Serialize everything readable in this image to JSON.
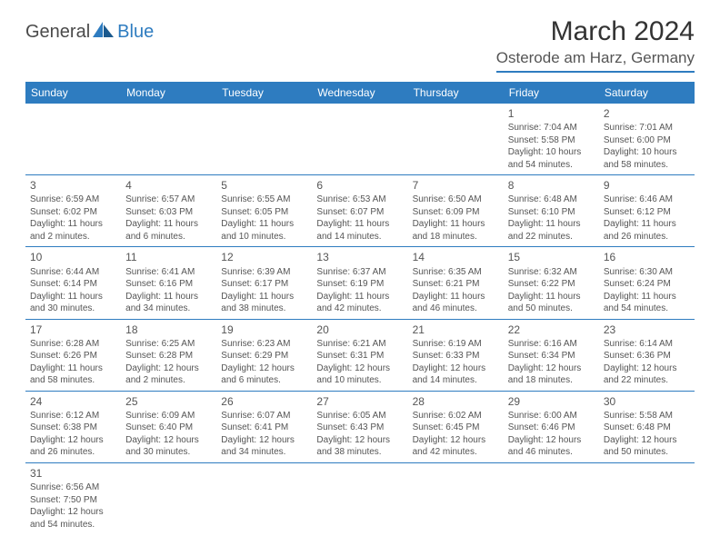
{
  "logo": {
    "text1": "General",
    "text2": "Blue"
  },
  "title": "March 2024",
  "location": "Osterode am Harz, Germany",
  "colors": {
    "header_bg": "#2e7cc0",
    "header_fg": "#ffffff",
    "border": "#2e7cc0",
    "text": "#555555"
  },
  "day_headers": [
    "Sunday",
    "Monday",
    "Tuesday",
    "Wednesday",
    "Thursday",
    "Friday",
    "Saturday"
  ],
  "weeks": [
    [
      null,
      null,
      null,
      null,
      null,
      {
        "n": "1",
        "sr": "Sunrise: 7:04 AM",
        "ss": "Sunset: 5:58 PM",
        "dl1": "Daylight: 10 hours",
        "dl2": "and 54 minutes."
      },
      {
        "n": "2",
        "sr": "Sunrise: 7:01 AM",
        "ss": "Sunset: 6:00 PM",
        "dl1": "Daylight: 10 hours",
        "dl2": "and 58 minutes."
      }
    ],
    [
      {
        "n": "3",
        "sr": "Sunrise: 6:59 AM",
        "ss": "Sunset: 6:02 PM",
        "dl1": "Daylight: 11 hours",
        "dl2": "and 2 minutes."
      },
      {
        "n": "4",
        "sr": "Sunrise: 6:57 AM",
        "ss": "Sunset: 6:03 PM",
        "dl1": "Daylight: 11 hours",
        "dl2": "and 6 minutes."
      },
      {
        "n": "5",
        "sr": "Sunrise: 6:55 AM",
        "ss": "Sunset: 6:05 PM",
        "dl1": "Daylight: 11 hours",
        "dl2": "and 10 minutes."
      },
      {
        "n": "6",
        "sr": "Sunrise: 6:53 AM",
        "ss": "Sunset: 6:07 PM",
        "dl1": "Daylight: 11 hours",
        "dl2": "and 14 minutes."
      },
      {
        "n": "7",
        "sr": "Sunrise: 6:50 AM",
        "ss": "Sunset: 6:09 PM",
        "dl1": "Daylight: 11 hours",
        "dl2": "and 18 minutes."
      },
      {
        "n": "8",
        "sr": "Sunrise: 6:48 AM",
        "ss": "Sunset: 6:10 PM",
        "dl1": "Daylight: 11 hours",
        "dl2": "and 22 minutes."
      },
      {
        "n": "9",
        "sr": "Sunrise: 6:46 AM",
        "ss": "Sunset: 6:12 PM",
        "dl1": "Daylight: 11 hours",
        "dl2": "and 26 minutes."
      }
    ],
    [
      {
        "n": "10",
        "sr": "Sunrise: 6:44 AM",
        "ss": "Sunset: 6:14 PM",
        "dl1": "Daylight: 11 hours",
        "dl2": "and 30 minutes."
      },
      {
        "n": "11",
        "sr": "Sunrise: 6:41 AM",
        "ss": "Sunset: 6:16 PM",
        "dl1": "Daylight: 11 hours",
        "dl2": "and 34 minutes."
      },
      {
        "n": "12",
        "sr": "Sunrise: 6:39 AM",
        "ss": "Sunset: 6:17 PM",
        "dl1": "Daylight: 11 hours",
        "dl2": "and 38 minutes."
      },
      {
        "n": "13",
        "sr": "Sunrise: 6:37 AM",
        "ss": "Sunset: 6:19 PM",
        "dl1": "Daylight: 11 hours",
        "dl2": "and 42 minutes."
      },
      {
        "n": "14",
        "sr": "Sunrise: 6:35 AM",
        "ss": "Sunset: 6:21 PM",
        "dl1": "Daylight: 11 hours",
        "dl2": "and 46 minutes."
      },
      {
        "n": "15",
        "sr": "Sunrise: 6:32 AM",
        "ss": "Sunset: 6:22 PM",
        "dl1": "Daylight: 11 hours",
        "dl2": "and 50 minutes."
      },
      {
        "n": "16",
        "sr": "Sunrise: 6:30 AM",
        "ss": "Sunset: 6:24 PM",
        "dl1": "Daylight: 11 hours",
        "dl2": "and 54 minutes."
      }
    ],
    [
      {
        "n": "17",
        "sr": "Sunrise: 6:28 AM",
        "ss": "Sunset: 6:26 PM",
        "dl1": "Daylight: 11 hours",
        "dl2": "and 58 minutes."
      },
      {
        "n": "18",
        "sr": "Sunrise: 6:25 AM",
        "ss": "Sunset: 6:28 PM",
        "dl1": "Daylight: 12 hours",
        "dl2": "and 2 minutes."
      },
      {
        "n": "19",
        "sr": "Sunrise: 6:23 AM",
        "ss": "Sunset: 6:29 PM",
        "dl1": "Daylight: 12 hours",
        "dl2": "and 6 minutes."
      },
      {
        "n": "20",
        "sr": "Sunrise: 6:21 AM",
        "ss": "Sunset: 6:31 PM",
        "dl1": "Daylight: 12 hours",
        "dl2": "and 10 minutes."
      },
      {
        "n": "21",
        "sr": "Sunrise: 6:19 AM",
        "ss": "Sunset: 6:33 PM",
        "dl1": "Daylight: 12 hours",
        "dl2": "and 14 minutes."
      },
      {
        "n": "22",
        "sr": "Sunrise: 6:16 AM",
        "ss": "Sunset: 6:34 PM",
        "dl1": "Daylight: 12 hours",
        "dl2": "and 18 minutes."
      },
      {
        "n": "23",
        "sr": "Sunrise: 6:14 AM",
        "ss": "Sunset: 6:36 PM",
        "dl1": "Daylight: 12 hours",
        "dl2": "and 22 minutes."
      }
    ],
    [
      {
        "n": "24",
        "sr": "Sunrise: 6:12 AM",
        "ss": "Sunset: 6:38 PM",
        "dl1": "Daylight: 12 hours",
        "dl2": "and 26 minutes."
      },
      {
        "n": "25",
        "sr": "Sunrise: 6:09 AM",
        "ss": "Sunset: 6:40 PM",
        "dl1": "Daylight: 12 hours",
        "dl2": "and 30 minutes."
      },
      {
        "n": "26",
        "sr": "Sunrise: 6:07 AM",
        "ss": "Sunset: 6:41 PM",
        "dl1": "Daylight: 12 hours",
        "dl2": "and 34 minutes."
      },
      {
        "n": "27",
        "sr": "Sunrise: 6:05 AM",
        "ss": "Sunset: 6:43 PM",
        "dl1": "Daylight: 12 hours",
        "dl2": "and 38 minutes."
      },
      {
        "n": "28",
        "sr": "Sunrise: 6:02 AM",
        "ss": "Sunset: 6:45 PM",
        "dl1": "Daylight: 12 hours",
        "dl2": "and 42 minutes."
      },
      {
        "n": "29",
        "sr": "Sunrise: 6:00 AM",
        "ss": "Sunset: 6:46 PM",
        "dl1": "Daylight: 12 hours",
        "dl2": "and 46 minutes."
      },
      {
        "n": "30",
        "sr": "Sunrise: 5:58 AM",
        "ss": "Sunset: 6:48 PM",
        "dl1": "Daylight: 12 hours",
        "dl2": "and 50 minutes."
      }
    ],
    [
      {
        "n": "31",
        "sr": "Sunrise: 6:56 AM",
        "ss": "Sunset: 7:50 PM",
        "dl1": "Daylight: 12 hours",
        "dl2": "and 54 minutes."
      },
      null,
      null,
      null,
      null,
      null,
      null
    ]
  ]
}
